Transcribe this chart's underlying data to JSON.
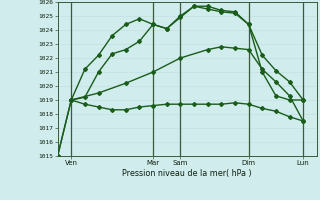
{
  "background_color": "#d0ecec",
  "grid_color_minor": "#c0dede",
  "grid_color_major": "#a8cccc",
  "line_color": "#1a5c1a",
  "ylim": [
    1015,
    1026
  ],
  "xlim": [
    0,
    19
  ],
  "yticks": [
    1015,
    1016,
    1017,
    1018,
    1019,
    1020,
    1021,
    1022,
    1023,
    1024,
    1025,
    1026
  ],
  "xtick_positions": [
    1,
    7,
    9,
    14,
    18
  ],
  "xtick_labels": [
    "Ven",
    "Mar",
    "Sam",
    "Dim",
    "Lun"
  ],
  "vline_positions": [
    1,
    7,
    9,
    14,
    18
  ],
  "xlabel": "Pression niveau de la mer( hPa )",
  "line1_x": [
    0,
    1,
    2,
    3,
    4,
    5,
    6,
    7,
    8,
    9,
    10,
    11,
    12,
    13,
    14,
    15,
    16,
    17,
    18
  ],
  "line1_y": [
    1015.0,
    1019.0,
    1019.2,
    1021.0,
    1022.3,
    1022.6,
    1023.2,
    1024.4,
    1024.1,
    1024.9,
    1025.7,
    1025.7,
    1025.4,
    1025.3,
    1024.4,
    1022.2,
    1021.1,
    1020.3,
    1019.0
  ],
  "line2_x": [
    1,
    2,
    3,
    4,
    5,
    6,
    7,
    8,
    9,
    10,
    11,
    12,
    13,
    14,
    15,
    16,
    17,
    18
  ],
  "line2_y": [
    1019.0,
    1021.2,
    1022.2,
    1023.6,
    1024.4,
    1024.8,
    1024.4,
    1024.1,
    1025.0,
    1025.7,
    1025.5,
    1025.3,
    1025.2,
    1024.4,
    1021.0,
    1019.3,
    1019.0,
    1019.0
  ],
  "line3_x": [
    1,
    3,
    5,
    7,
    9,
    11,
    12,
    13,
    14,
    15,
    16,
    17,
    18
  ],
  "line3_y": [
    1019.0,
    1019.5,
    1020.2,
    1021.0,
    1022.0,
    1022.6,
    1022.8,
    1022.7,
    1022.6,
    1021.2,
    1020.3,
    1019.3,
    1017.5
  ],
  "line4_x": [
    0,
    1,
    2,
    3,
    4,
    5,
    6,
    7,
    8,
    9,
    10,
    11,
    12,
    13,
    14,
    15,
    16,
    17,
    18
  ],
  "line4_y": [
    1015.0,
    1019.0,
    1018.7,
    1018.5,
    1018.3,
    1018.3,
    1018.5,
    1018.6,
    1018.7,
    1018.7,
    1018.7,
    1018.7,
    1018.7,
    1018.8,
    1018.7,
    1018.4,
    1018.2,
    1017.8,
    1017.5
  ]
}
